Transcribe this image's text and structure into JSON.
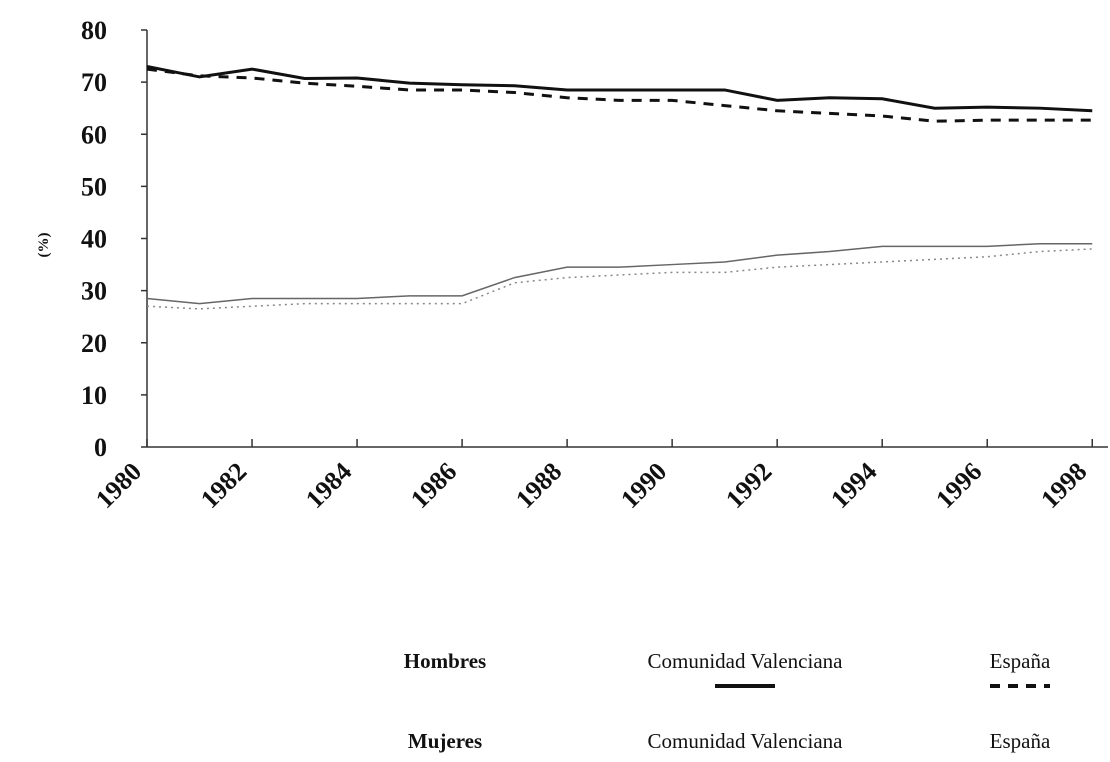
{
  "chart_data": {
    "type": "line",
    "ylabel": "(%)",
    "x": [
      1980,
      1981,
      1982,
      1983,
      1984,
      1985,
      1986,
      1987,
      1988,
      1989,
      1990,
      1991,
      1992,
      1993,
      1994,
      1995,
      1996,
      1997,
      1998
    ],
    "series": [
      {
        "group": "Hombres",
        "name": "Comunidad Valenciana",
        "color": "#111111",
        "style": "solid",
        "width": 3,
        "values": [
          73,
          71,
          72.5,
          70.7,
          70.8,
          69.8,
          69.5,
          69.3,
          68.5,
          68.5,
          68.5,
          68.5,
          66.5,
          67,
          66.8,
          65,
          65.2,
          65,
          64.5
        ]
      },
      {
        "group": "Hombres",
        "name": "España",
        "color": "#111111",
        "style": "dashed",
        "width": 3,
        "values": [
          72.5,
          71.2,
          70.8,
          69.8,
          69.2,
          68.5,
          68.5,
          68,
          67,
          66.5,
          66.5,
          65.5,
          64.5,
          64,
          63.5,
          62.5,
          62.7,
          62.7,
          62.7
        ]
      },
      {
        "group": "Mujeres",
        "name": "Comunidad Valenciana",
        "color": "#666666",
        "style": "solid",
        "width": 1.5,
        "values": [
          28.5,
          27.5,
          28.5,
          28.5,
          28.5,
          29,
          29,
          32.5,
          34.5,
          34.5,
          35,
          35.5,
          36.8,
          37.5,
          38.5,
          38.5,
          38.5,
          39,
          39
        ]
      },
      {
        "group": "Mujeres",
        "name": "España",
        "color": "#888888",
        "style": "dotted",
        "width": 1.5,
        "values": [
          27,
          26.5,
          27,
          27.5,
          27.5,
          27.5,
          27.5,
          31.5,
          32.5,
          33,
          33.5,
          33.5,
          34.5,
          35,
          35.5,
          36,
          36.5,
          37.5,
          38
        ]
      }
    ],
    "xlim": [
      1980,
      1998.3
    ],
    "xticks": [
      1980,
      1982,
      1984,
      1986,
      1988,
      1990,
      1992,
      1994,
      1996,
      1998
    ],
    "ylim": [
      0,
      80
    ],
    "yticks": [
      0,
      10,
      20,
      30,
      40,
      50,
      60,
      70,
      80
    ]
  }
}
